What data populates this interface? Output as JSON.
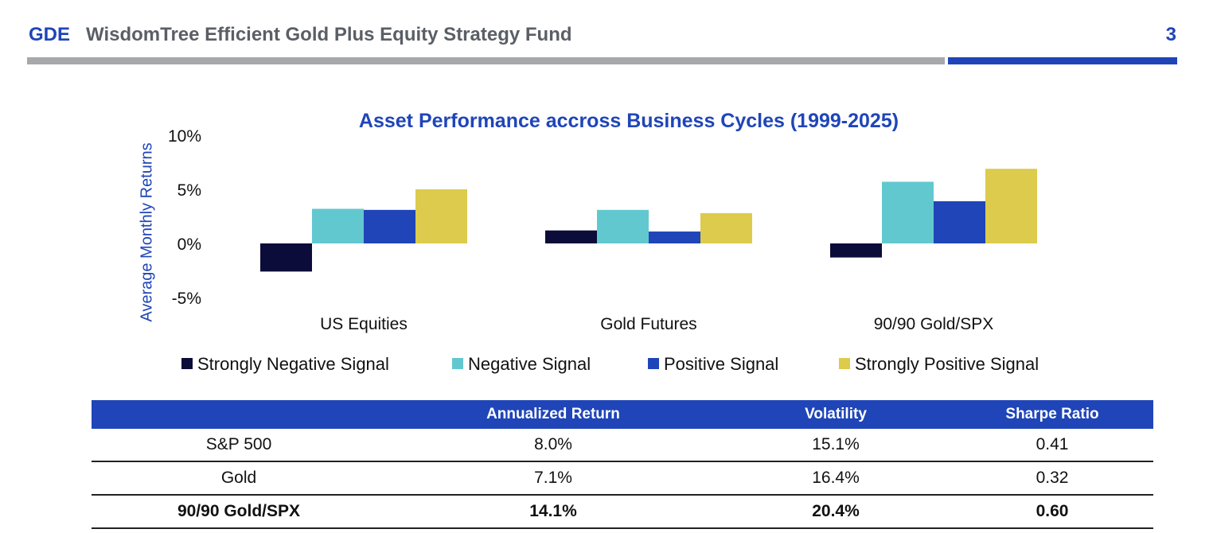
{
  "header": {
    "ticker": "GDE",
    "fund_name": "WisdomTree Efficient Gold Plus Equity Strategy Fund",
    "page_number": "3",
    "accent_color": "#1f45b8"
  },
  "chart_data": {
    "type": "bar",
    "title": "Asset Performance accross Business Cycles (1999-2025)",
    "ylabel": "Average Monthly Returns",
    "xlabel": "",
    "ylim": [
      -5,
      10
    ],
    "yticks": [
      "10%",
      "5%",
      "0%",
      "-5%"
    ],
    "categories": [
      "US Equities",
      "Gold Futures",
      "90/90 Gold/SPX"
    ],
    "series": [
      {
        "name": "Strongly Negative Signal",
        "color": "#0c0c3a",
        "values": [
          -2.6,
          1.2,
          -1.3
        ]
      },
      {
        "name": "Negative Signal",
        "color": "#62c8d0",
        "values": [
          3.2,
          3.1,
          5.7
        ]
      },
      {
        "name": "Positive Signal",
        "color": "#1f45b8",
        "values": [
          3.1,
          1.1,
          3.9
        ]
      },
      {
        "name": "Strongly Positive Signal",
        "color": "#dccb4c",
        "values": [
          5.0,
          2.8,
          6.9
        ]
      }
    ],
    "legend": "bottom"
  },
  "table": {
    "headers": [
      "",
      "Annualized Return",
      "Volatility",
      "Sharpe Ratio"
    ],
    "rows": [
      [
        "S&P 500",
        "8.0%",
        "15.1%",
        "0.41"
      ],
      [
        "Gold",
        "7.1%",
        "16.4%",
        "0.32"
      ],
      [
        "90/90 Gold/SPX",
        "14.1%",
        "20.4%",
        "0.60"
      ]
    ]
  }
}
